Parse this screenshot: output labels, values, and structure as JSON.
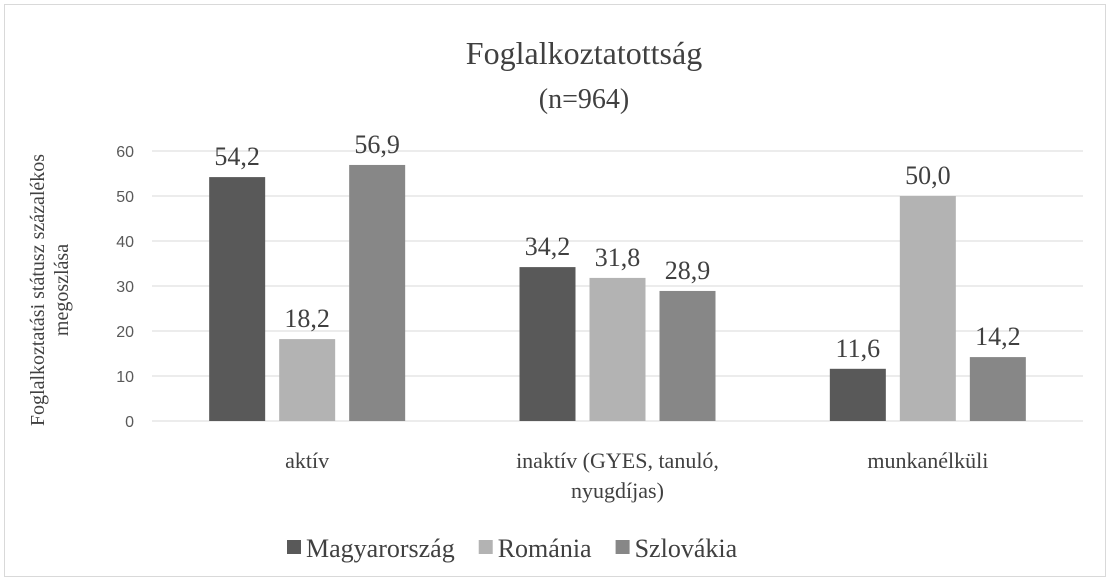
{
  "chart_data": {
    "type": "bar",
    "title": "Foglalkoztatottság",
    "subtitle": "(n=964)",
    "y_label": [
      "Foglalkoztatási státusz százalékos",
      "megoszlása"
    ],
    "categories": [
      "aktív",
      "inaktív (GYES, tanuló, nyugdíjas)",
      "munkanélküli"
    ],
    "series": [
      {
        "name": "Magyarország",
        "color": "#595959",
        "values": [
          54.2,
          34.2,
          11.6
        ],
        "value_labels": [
          "54,2",
          "34,2",
          "11,6"
        ]
      },
      {
        "name": "Románia",
        "color": "#b3b3b3",
        "values": [
          18.2,
          31.8,
          50.0
        ],
        "value_labels": [
          "18,2",
          "31,8",
          "50,0"
        ]
      },
      {
        "name": "Szlovákia",
        "color": "#878787",
        "values": [
          56.9,
          28.9,
          14.2
        ],
        "value_labels": [
          "56,9",
          "28,9",
          "14,2"
        ]
      }
    ],
    "ylim": [
      0,
      60
    ],
    "yticks": [
      0,
      10,
      20,
      30,
      40,
      50,
      60
    ],
    "grid": true,
    "legend": "bottom"
  }
}
